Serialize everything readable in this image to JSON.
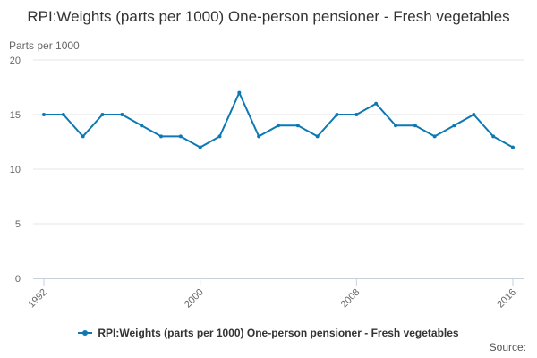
{
  "chart_data": {
    "type": "line",
    "title": "RPI:Weights (parts per 1000) One-person pensioner - Fresh vegetables",
    "ylabel": "Parts per 1000",
    "xlabel": "",
    "x": [
      1992,
      1993,
      1994,
      1995,
      1996,
      1997,
      1998,
      1999,
      2000,
      2001,
      2002,
      2003,
      2004,
      2005,
      2006,
      2007,
      2008,
      2009,
      2010,
      2011,
      2012,
      2013,
      2014,
      2015,
      2016
    ],
    "x_tick_labels": [
      "1992",
      "2000",
      "2008",
      "2016"
    ],
    "xlim": [
      1992,
      2016
    ],
    "ylim": [
      0,
      20
    ],
    "y_ticks": [
      0,
      5,
      10,
      15,
      20
    ],
    "grid": true,
    "legend_position": "bottom",
    "series": [
      {
        "name": "RPI:Weights (parts per 1000) One-person pensioner - Fresh vegetables",
        "color": "#0d78b4",
        "values": [
          15,
          15,
          13,
          15,
          15,
          14,
          13,
          13,
          12,
          13,
          17,
          13,
          14,
          14,
          13,
          15,
          15,
          16,
          14,
          14,
          13,
          14,
          15,
          13,
          12
        ]
      }
    ]
  },
  "credit_text": "Source:"
}
